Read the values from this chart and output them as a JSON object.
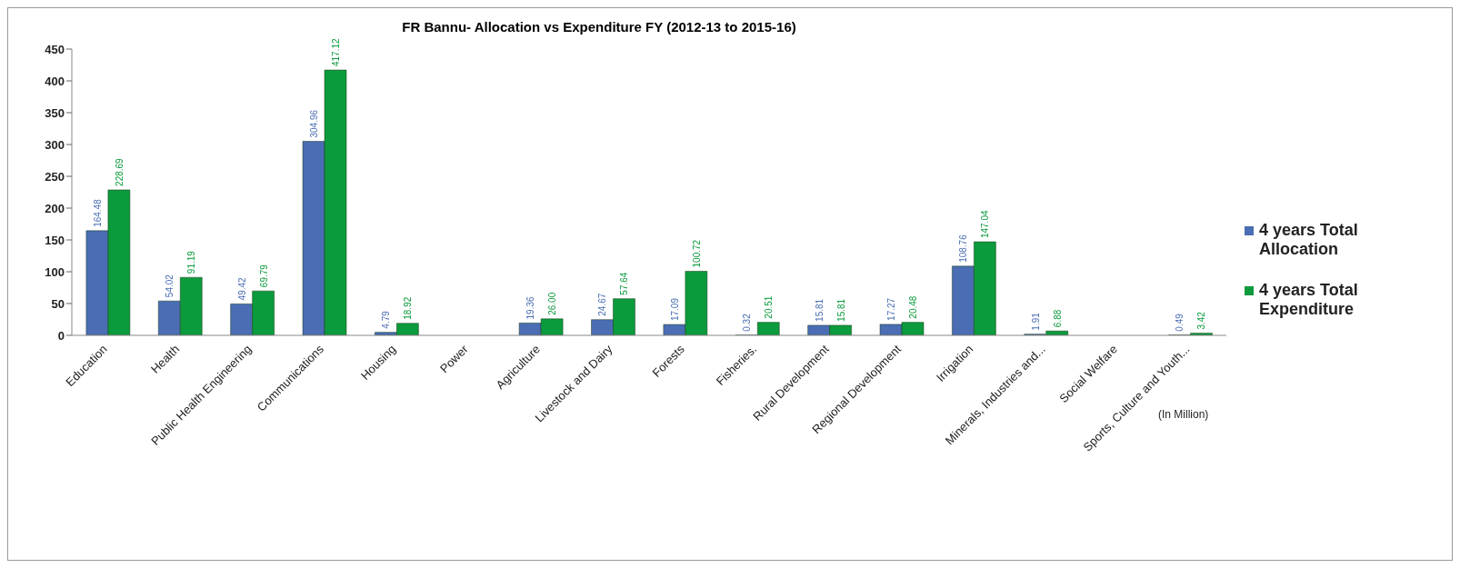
{
  "chart_data": {
    "type": "bar",
    "title": "FR Bannu- Allocation vs Expenditure FY (2012-13 to 2015-16)",
    "categories": [
      "Education",
      "Health",
      "Public Health Engineering",
      "Communications",
      "Housing",
      "Power",
      "Agriculture",
      "Livestock and Dairy",
      "Forests",
      "Fisheries.",
      "Rural Development",
      "Regional Development",
      "Irrigation",
      "Minerals, Industries and...",
      "Social Welfare",
      "Sports, Culture and Youth..."
    ],
    "series": [
      {
        "name": "4 years Total Allocation",
        "color": "#4a6db3",
        "values": [
          164.48,
          54.02,
          49.42,
          304.96,
          4.79,
          null,
          19.36,
          24.67,
          17.09,
          0.32,
          15.81,
          17.27,
          108.76,
          1.91,
          null,
          0.49
        ],
        "value_labels": [
          "164.48",
          "54.02",
          "49.42",
          "304.96",
          "4.79",
          null,
          "19.36",
          "24.67",
          "17.09",
          "0.32",
          "15.81",
          "17.27",
          "108.76",
          "1.91",
          null,
          "0.49"
        ]
      },
      {
        "name": "4 years Total Expenditure",
        "color": "#0b9a3c",
        "values": [
          228.69,
          91.19,
          69.79,
          417.12,
          18.92,
          null,
          26.0,
          57.64,
          100.72,
          20.51,
          15.81,
          20.48,
          147.04,
          6.88,
          null,
          3.42
        ],
        "value_labels": [
          "228.69",
          "91.19",
          "69.79",
          "417.12",
          "18.92",
          null,
          "26.00",
          "57.64",
          "100.72",
          "20.51",
          "15.81",
          "20.48",
          "147.04",
          "6.88",
          null,
          "3.42"
        ]
      }
    ],
    "ylim": [
      0,
      450
    ],
    "yticks": [
      0,
      50,
      100,
      150,
      200,
      250,
      300,
      350,
      400,
      450
    ],
    "grid": false,
    "legend": "right",
    "annotations": [
      "(In Million)"
    ]
  }
}
